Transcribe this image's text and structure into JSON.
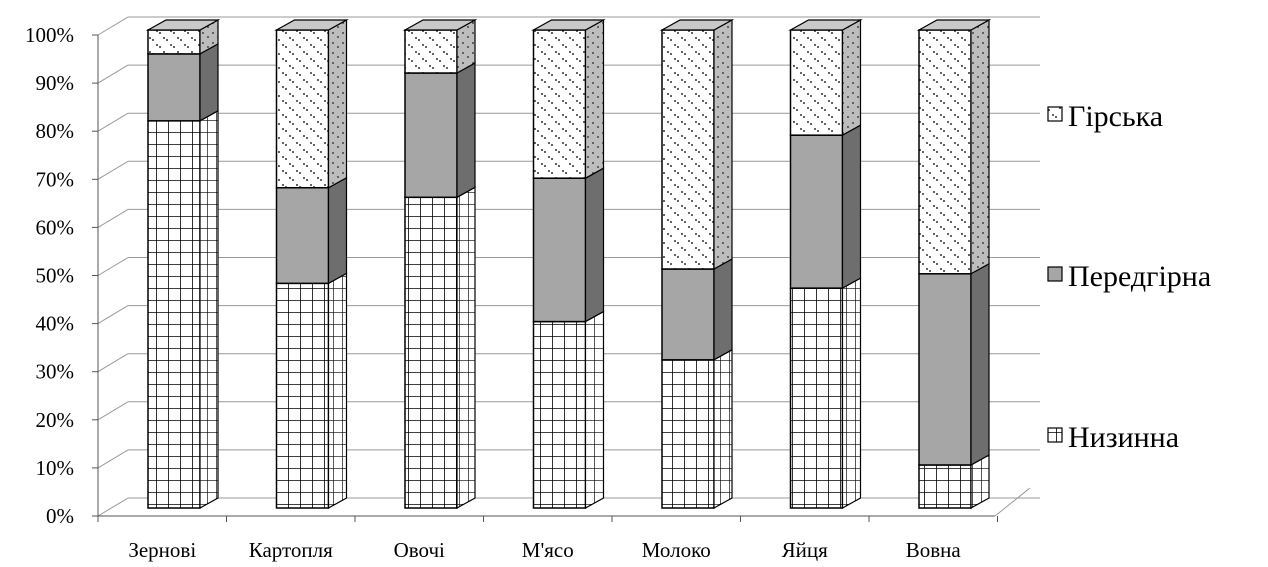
{
  "chart_data": {
    "type": "bar",
    "stacked": "percent",
    "three_d": true,
    "title": "",
    "xlabel": "",
    "ylabel": "",
    "categories": [
      "Зернові",
      "Картопля",
      "Овочі",
      "М'ясо",
      "Молоко",
      "Яйця",
      "Вовна"
    ],
    "series": [
      {
        "name": "Низинна",
        "values": [
          81,
          47,
          65,
          39,
          31,
          46,
          9
        ],
        "pattern": "grid",
        "color": "#ffffff"
      },
      {
        "name": "Передгірна",
        "values": [
          14,
          20,
          26,
          30,
          19,
          32,
          40
        ],
        "pattern": "solid",
        "color": "#a6a6a6"
      },
      {
        "name": "Гірська",
        "values": [
          5,
          33,
          9,
          31,
          50,
          22,
          51
        ],
        "pattern": "dots",
        "color": "#ffffff"
      }
    ],
    "y_ticks": [
      "0%",
      "10%",
      "20%",
      "30%",
      "40%",
      "50%",
      "60%",
      "70%",
      "80%",
      "90%",
      "100%"
    ],
    "ylim": [
      0,
      100
    ],
    "grid": true,
    "legend_position": "right",
    "legend_order": [
      "Гірська",
      "Передгірна",
      "Низинна"
    ]
  }
}
